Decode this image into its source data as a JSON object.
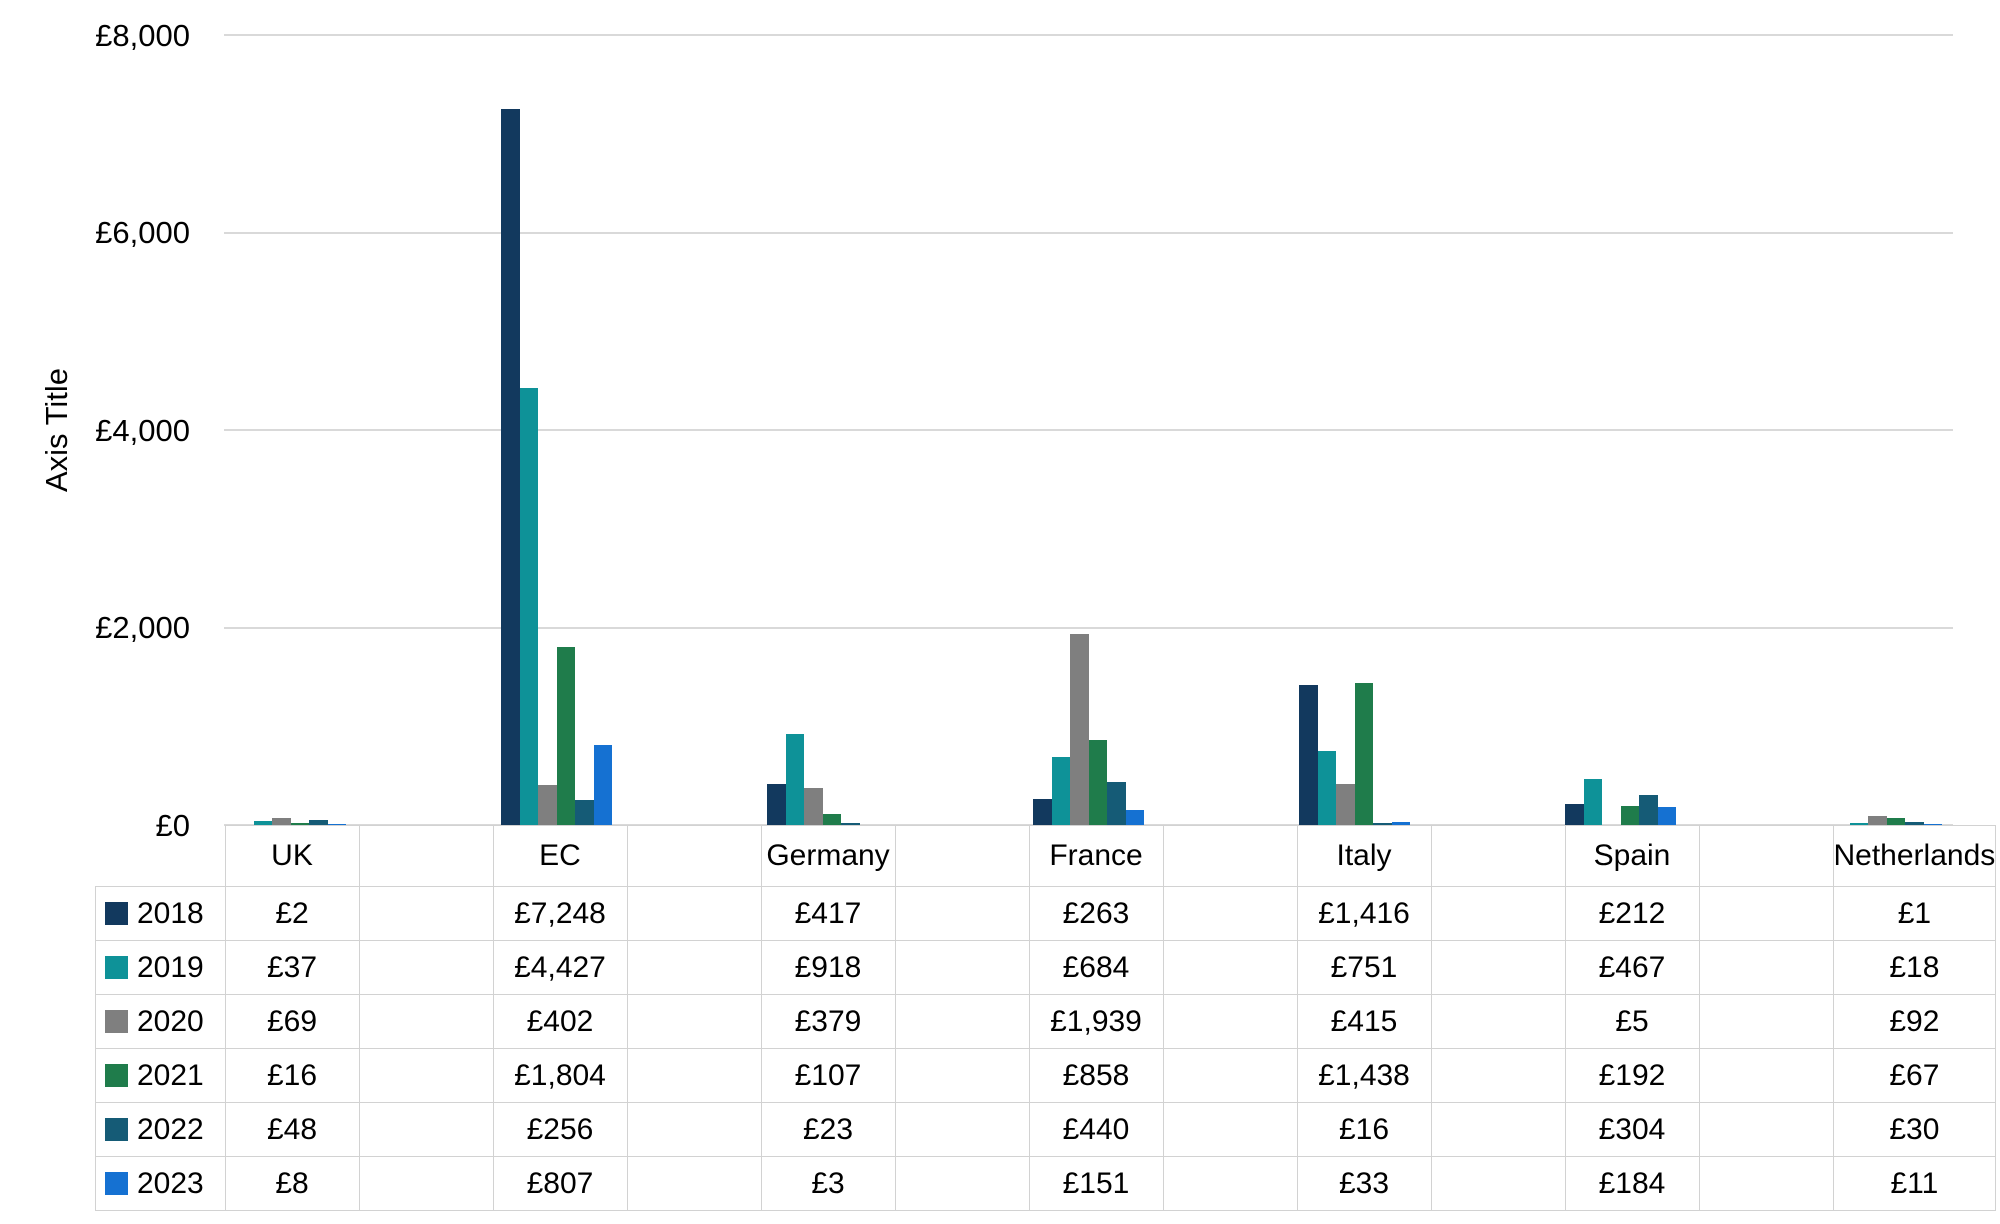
{
  "chart_data": {
    "type": "bar",
    "title": "",
    "xlabel": "",
    "ylabel": "Axis Title",
    "value_prefix": "£",
    "ylim": [
      0,
      8000
    ],
    "grid": true,
    "legend_position": "table-left-column",
    "y_ticks": [
      "£0",
      "£2,000",
      "£4,000",
      "£6,000",
      "£8,000"
    ],
    "categories": [
      "UK",
      "EC",
      "Germany",
      "France",
      "Italy",
      "Spain",
      "Netherlands"
    ],
    "series": [
      {
        "name": "2018",
        "color": "#12395E",
        "values": [
          2,
          7248,
          417,
          263,
          1416,
          212,
          1
        ]
      },
      {
        "name": "2019",
        "color": "#0E9298",
        "values": [
          37,
          4427,
          918,
          684,
          751,
          467,
          18
        ]
      },
      {
        "name": "2020",
        "color": "#7F7F7F",
        "values": [
          69,
          402,
          379,
          1939,
          415,
          5,
          92
        ]
      },
      {
        "name": "2021",
        "color": "#1F7C4B",
        "values": [
          16,
          1804,
          107,
          858,
          1438,
          192,
          67
        ]
      },
      {
        "name": "2022",
        "color": "#155B76",
        "values": [
          48,
          256,
          23,
          440,
          16,
          304,
          30
        ]
      },
      {
        "name": "2023",
        "color": "#1571D2",
        "values": [
          8,
          807,
          3,
          151,
          33,
          184,
          11
        ]
      }
    ],
    "colors": {
      "gridline": "#d9d9d9",
      "table_border": "#d2d2d2",
      "text": "#000000"
    }
  }
}
